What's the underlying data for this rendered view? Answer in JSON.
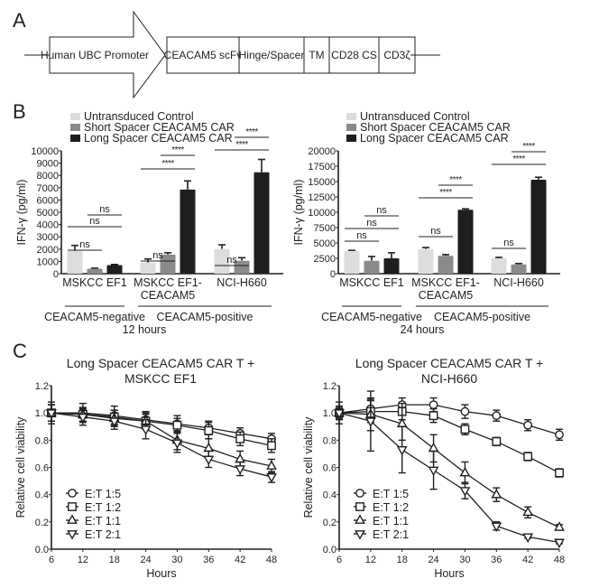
{
  "panels": {
    "A": {
      "letter": "A",
      "promoter": "Human UBC Promoter",
      "segments": [
        "CEACAM5 scFv",
        "Hinge/Spacer",
        "TM",
        "CD28 CS",
        "CD3ζ"
      ]
    },
    "B": {
      "letter": "B"
    },
    "C": {
      "letter": "C"
    }
  },
  "chart_data": [
    {
      "id": "B-12h",
      "type": "bar",
      "title": "12 hours",
      "ylabel": "IFN-γ (pg/ml)",
      "ylim": [
        0,
        10000
      ],
      "yticks": [
        0,
        1000,
        2000,
        3000,
        4000,
        5000,
        6000,
        7000,
        8000,
        9000,
        10000
      ],
      "categories": [
        "MSKCC EF1",
        "MSKCC EF1-\nCEACAM5",
        "NCI-H660"
      ],
      "groups": [
        {
          "label": "CEACAM5-negative",
          "categories": [
            0
          ]
        },
        {
          "label": "CEACAM5-positive",
          "categories": [
            1,
            2
          ]
        }
      ],
      "legend": "top-left",
      "series": [
        {
          "name": "Untransduced Control",
          "color": "#dcdddf",
          "values": [
            1850,
            900,
            2000
          ],
          "errors": [
            450,
            300,
            350
          ]
        },
        {
          "name": "Short Spacer CEACAM5 CAR",
          "color": "#8a8b8d",
          "values": [
            400,
            1550,
            1050
          ],
          "errors": [
            50,
            150,
            250
          ]
        },
        {
          "name": "Long Spacer CEACAM5 CAR",
          "color": "#1f1d1e",
          "values": [
            700,
            6850,
            8250
          ],
          "errors": [
            50,
            700,
            1050
          ]
        }
      ],
      "significance": [
        {
          "cat": 0,
          "from": 0,
          "to": 1,
          "label": "ns"
        },
        {
          "cat": 0,
          "from": 0,
          "to": 2,
          "label": "ns"
        },
        {
          "cat": 0,
          "from": 1,
          "to": 2,
          "label": "ns"
        },
        {
          "cat": 1,
          "from": 0,
          "to": 1,
          "label": "ns"
        },
        {
          "cat": 1,
          "from": 0,
          "to": 2,
          "label": "****"
        },
        {
          "cat": 1,
          "from": 1,
          "to": 2,
          "label": "****"
        },
        {
          "cat": 2,
          "from": 0,
          "to": 1,
          "label": "ns"
        },
        {
          "cat": 2,
          "from": 0,
          "to": 2,
          "label": "****"
        },
        {
          "cat": 2,
          "from": 1,
          "to": 2,
          "label": "****"
        }
      ]
    },
    {
      "id": "B-24h",
      "type": "bar",
      "title": "24 hours",
      "ylabel": "IFN-γ (pg/ml)",
      "ylim": [
        0,
        20000
      ],
      "yticks": [
        0,
        2500,
        5000,
        7500,
        10000,
        12500,
        15000,
        17500,
        20000
      ],
      "categories": [
        "MSKCC EF1",
        "MSKCC EF1-\nCEACAM5",
        "NCI-H660"
      ],
      "groups": [
        {
          "label": "CEACAM5-negative",
          "categories": [
            0
          ]
        },
        {
          "label": "CEACAM5-positive",
          "categories": [
            1,
            2
          ]
        }
      ],
      "legend": "top-left",
      "series": [
        {
          "name": "Untransduced Control",
          "color": "#dcdddf",
          "values": [
            3700,
            4000,
            2500
          ],
          "errors": [
            100,
            250,
            150
          ]
        },
        {
          "name": "Short Spacer CEACAM5 CAR",
          "color": "#8a8b8d",
          "values": [
            2100,
            2900,
            1500
          ],
          "errors": [
            700,
            200,
            150
          ]
        },
        {
          "name": "Long Spacer CEACAM5 CAR",
          "color": "#1f1d1e",
          "values": [
            2500,
            10400,
            15300
          ],
          "errors": [
            900,
            150,
            400
          ]
        }
      ],
      "significance": [
        {
          "cat": 0,
          "from": 0,
          "to": 1,
          "label": "ns"
        },
        {
          "cat": 0,
          "from": 0,
          "to": 2,
          "label": "ns"
        },
        {
          "cat": 0,
          "from": 1,
          "to": 2,
          "label": "ns"
        },
        {
          "cat": 1,
          "from": 0,
          "to": 1,
          "label": "ns"
        },
        {
          "cat": 1,
          "from": 0,
          "to": 2,
          "label": "****"
        },
        {
          "cat": 1,
          "from": 1,
          "to": 2,
          "label": "****"
        },
        {
          "cat": 2,
          "from": 0,
          "to": 1,
          "label": "ns"
        },
        {
          "cat": 2,
          "from": 0,
          "to": 2,
          "label": "****"
        },
        {
          "cat": 2,
          "from": 1,
          "to": 2,
          "label": "****"
        }
      ]
    },
    {
      "id": "C-MSKCC",
      "type": "line",
      "title": "Long Spacer CEACAM5 CAR T +\nMSKCC EF1",
      "xlabel": "Hours",
      "ylabel": "Relative cell viability",
      "xlim": [
        6,
        48
      ],
      "ylim": [
        0,
        1.2
      ],
      "xticks": [
        6,
        12,
        18,
        24,
        30,
        36,
        42,
        48
      ],
      "yticks": [
        0.0,
        0.2,
        0.4,
        0.6,
        0.8,
        1.0,
        1.2
      ],
      "ytick_labels": [
        "0.0",
        "0.2",
        "0.4",
        "0.6",
        "0.8",
        "1.0",
        "1.2"
      ],
      "legend": "bottom-left",
      "x": [
        6,
        12,
        18,
        24,
        30,
        36,
        42,
        48
      ],
      "series": [
        {
          "name": "E:T 1:5",
          "marker": "circle",
          "values": [
            1.0,
            1.0,
            0.98,
            0.95,
            0.92,
            0.89,
            0.85,
            0.81
          ],
          "errors": [
            0.08,
            0.07,
            0.07,
            0.06,
            0.06,
            0.05,
            0.04,
            0.04
          ]
        },
        {
          "name": "E:T 1:2",
          "marker": "square",
          "values": [
            1.0,
            0.99,
            0.97,
            0.94,
            0.91,
            0.87,
            0.81,
            0.76
          ],
          "errors": [
            0.06,
            0.05,
            0.05,
            0.05,
            0.05,
            0.06,
            0.05,
            0.05
          ]
        },
        {
          "name": "E:T 1:1",
          "marker": "triangle-up",
          "values": [
            1.0,
            0.99,
            0.96,
            0.94,
            0.8,
            0.74,
            0.66,
            0.61
          ],
          "errors": [
            0.06,
            0.05,
            0.06,
            0.06,
            0.07,
            0.07,
            0.06,
            0.05
          ]
        },
        {
          "name": "E:T 2:1",
          "marker": "triangle-down",
          "values": [
            1.0,
            0.97,
            0.94,
            0.88,
            0.78,
            0.66,
            0.59,
            0.53
          ],
          "errors": [
            0.06,
            0.06,
            0.06,
            0.07,
            0.07,
            0.06,
            0.05,
            0.04
          ]
        }
      ]
    },
    {
      "id": "C-H660",
      "type": "line",
      "title": "Long Spacer CEACAM5 CAR T +\nNCI-H660",
      "xlabel": "Hours",
      "ylabel": "Relative cell viability",
      "xlim": [
        6,
        48
      ],
      "ylim": [
        0,
        1.2
      ],
      "xticks": [
        6,
        12,
        18,
        24,
        30,
        36,
        42,
        48
      ],
      "yticks": [
        0.0,
        0.2,
        0.4,
        0.6,
        0.8,
        1.0,
        1.2
      ],
      "ytick_labels": [
        "0.0",
        "0.2",
        "0.4",
        "0.6",
        "0.8",
        "1.0",
        "1.2"
      ],
      "legend": "bottom-left",
      "x": [
        6,
        12,
        18,
        24,
        30,
        36,
        42,
        48
      ],
      "series": [
        {
          "name": "E:T 1:5",
          "marker": "circle",
          "values": [
            1.0,
            1.03,
            1.06,
            1.06,
            1.01,
            0.98,
            0.91,
            0.84
          ],
          "errors": [
            0.04,
            0.07,
            0.05,
            0.05,
            0.05,
            0.04,
            0.04,
            0.04
          ]
        },
        {
          "name": "E:T 1:2",
          "marker": "square",
          "values": [
            1.0,
            1.01,
            1.01,
            0.98,
            0.88,
            0.79,
            0.68,
            0.56
          ],
          "errors": [
            0.03,
            0.08,
            0.06,
            0.05,
            0.04,
            0.03,
            0.03,
            0.03
          ]
        },
        {
          "name": "E:T 1:1",
          "marker": "triangle-up",
          "values": [
            1.0,
            0.99,
            0.92,
            0.74,
            0.56,
            0.4,
            0.27,
            0.16
          ],
          "errors": [
            0.08,
            0.12,
            0.12,
            0.1,
            0.08,
            0.05,
            0.04,
            0.02
          ]
        },
        {
          "name": "E:T 2:1",
          "marker": "triangle-down",
          "values": [
            1.0,
            0.94,
            0.73,
            0.58,
            0.43,
            0.17,
            0.09,
            0.05
          ],
          "errors": [
            0.05,
            0.22,
            0.17,
            0.14,
            0.06,
            0.03,
            0.01,
            0.01
          ]
        }
      ]
    }
  ]
}
